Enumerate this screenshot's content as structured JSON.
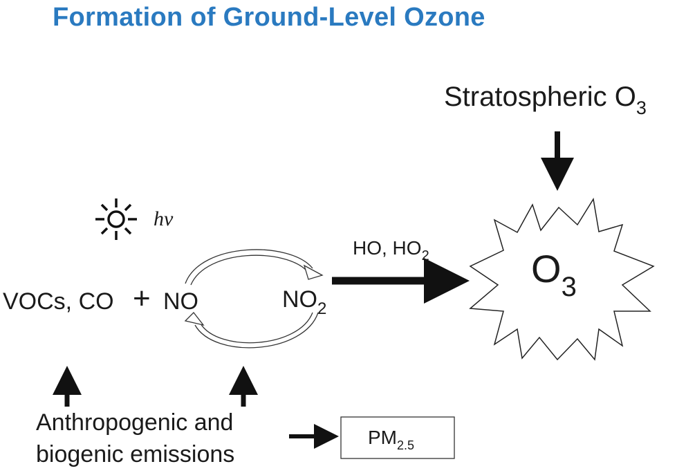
{
  "title": "Formation of Ground-Level Ozone",
  "colors": {
    "title": "#2a7ac0",
    "ink": "#1a1a1a"
  },
  "labels": {
    "stratospheric": "Stratospheric O",
    "stratospheric_sub": "3",
    "hv": "hv",
    "reactants": "VOCs, CO",
    "plus": "+",
    "no": "NO",
    "no2": "NO",
    "no2_sub": "2",
    "oxidants": "HO, HO",
    "oxidants_sub": "2",
    "ozone": "O",
    "ozone_sub": "3",
    "emissions_line1": "Anthropogenic and",
    "emissions_line2": "biogenic emissions",
    "pm": "PM",
    "pm_sub": "2.5"
  },
  "icons": {
    "sun": "sun-icon"
  }
}
